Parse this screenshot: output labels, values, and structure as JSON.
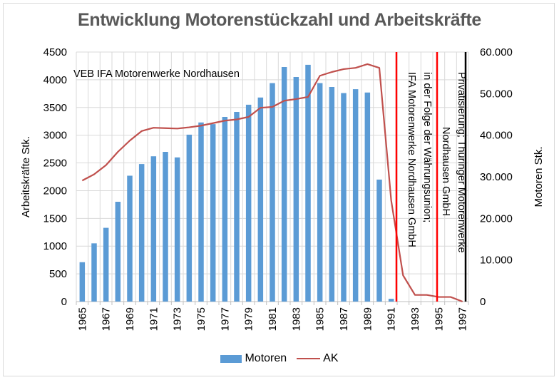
{
  "chart_data": {
    "type": "bar+line",
    "title": "Entwicklung Motorenstückzahl und Arbeitskräfte",
    "x": [
      1965,
      1966,
      1967,
      1968,
      1969,
      1970,
      1971,
      1972,
      1973,
      1974,
      1975,
      1976,
      1977,
      1978,
      1979,
      1980,
      1981,
      1982,
      1983,
      1984,
      1985,
      1986,
      1987,
      1988,
      1989,
      1990,
      1991,
      1992,
      1993,
      1994,
      1995,
      1996,
      1997
    ],
    "x_tick_labels": [
      "1965",
      "1967",
      "1969",
      "1971",
      "1973",
      "1975",
      "1977",
      "1979",
      "1981",
      "1983",
      "1985",
      "1987",
      "1989",
      "1991",
      "1993",
      "1995",
      "1997"
    ],
    "series": [
      {
        "name": "Motoren",
        "type": "bar",
        "axis": "left",
        "color": "#5b9bd5",
        "values": [
          710,
          1050,
          1330,
          1800,
          2270,
          2480,
          2620,
          2700,
          2600,
          3010,
          3230,
          3200,
          3330,
          3420,
          3550,
          3680,
          3940,
          4230,
          4050,
          4270,
          3940,
          3870,
          3760,
          3830,
          3770,
          2200,
          50,
          null,
          null,
          null,
          null,
          null,
          null
        ]
      },
      {
        "name": "AK",
        "type": "line",
        "axis": "right",
        "color": "#c0504d",
        "values": [
          29100,
          30600,
          32800,
          36000,
          38700,
          41000,
          41800,
          41700,
          41600,
          41900,
          42300,
          42900,
          43500,
          43800,
          44400,
          46600,
          46800,
          48300,
          48700,
          49200,
          54300,
          55200,
          55900,
          56200,
          57100,
          56200,
          24300,
          6300,
          1600,
          1600,
          1100,
          1100,
          0
        ]
      }
    ],
    "ylabel": "Arbeitskräfte Stk.",
    "ylim": [
      0,
      4500
    ],
    "y_ticks": [
      "0",
      "500",
      "1000",
      "1500",
      "2000",
      "2500",
      "3000",
      "3500",
      "4000",
      "4500"
    ],
    "y2label": "Motoren Stk.",
    "y2lim": [
      0,
      60000
    ],
    "y2_ticks": [
      "0",
      "10.000",
      "20.000",
      "30.000",
      "40.000",
      "50.000",
      "60.000"
    ],
    "grid": true,
    "legend_position": "bottom",
    "annotations": [
      {
        "text": "VEB IFA Motorenwerke Nordhausen",
        "position": "top-left"
      },
      {
        "text": "IFA Motorenwerke Nordhausen GmbH",
        "vline_year": 1991.5,
        "color": "#ff0000",
        "orientation": "vertical"
      },
      {
        "text": "in der Folge der Währungsunion;",
        "orientation": "vertical"
      },
      {
        "text": "Nordhausen GmbH",
        "vline_year": 1994.9,
        "color": "#ff0000",
        "orientation": "vertical"
      },
      {
        "text": "Privatisierung; Thüringer Motorenwerke",
        "vline_year": 1997.3,
        "color": "#000000",
        "orientation": "vertical"
      }
    ]
  },
  "legend": {
    "motoren": "Motoren",
    "ak": "AK"
  }
}
